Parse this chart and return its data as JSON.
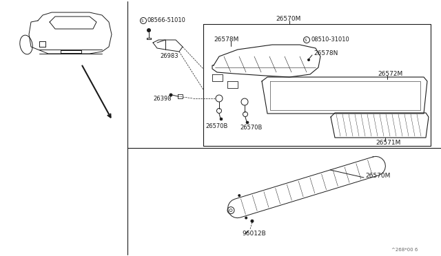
{
  "bg_color": "#ffffff",
  "line_color": "#1a1a1a",
  "fig_width": 6.4,
  "fig_height": 3.72,
  "dpi": 100,
  "footer_text": "^268*00 6",
  "labels": {
    "s08566": "08566-51010",
    "s08510": "08510-31010",
    "l26570M_top": "26570M",
    "l26578M": "26578M",
    "l26578N": "26578N",
    "l26572M": "26572M",
    "l26571M": "26571M",
    "l26983": "26983",
    "l26398": "26398",
    "l26570B_left": "26570B",
    "l26570B_right": "26570B",
    "l26570M_bot": "26570M",
    "l96012B": "96012B"
  }
}
